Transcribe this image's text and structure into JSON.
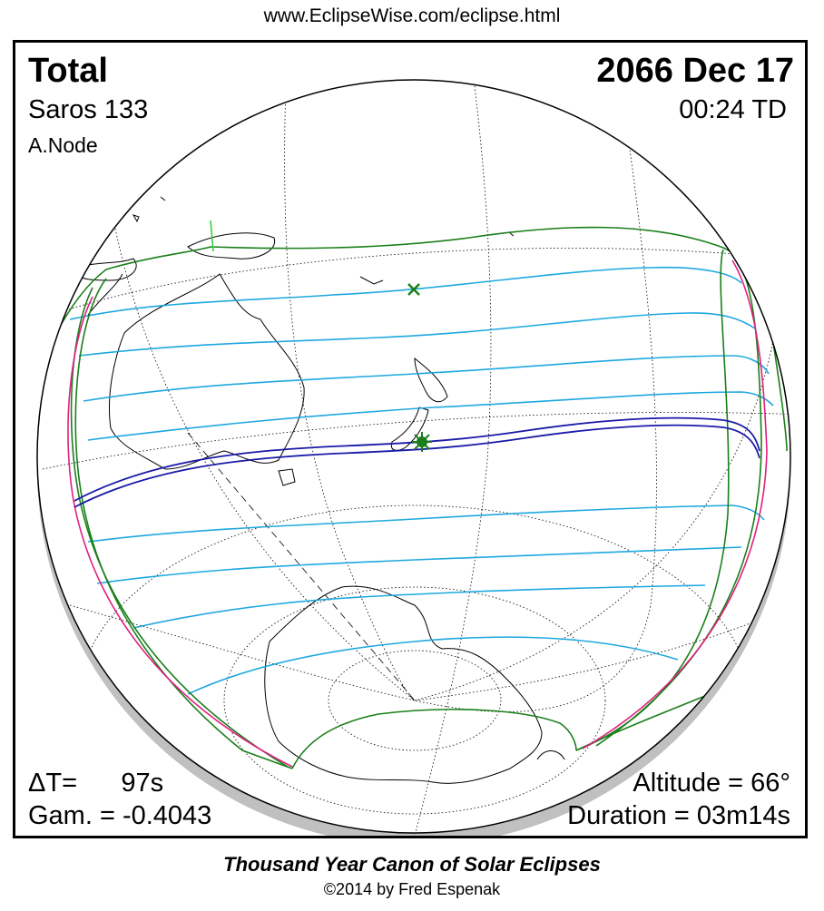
{
  "header": {
    "url": "www.EclipseWise.com/eclipse.html"
  },
  "eclipse": {
    "type": "Total",
    "date": "2066 Dec 17",
    "saros": "Saros 133",
    "time": "00:24 TD",
    "node": "A.Node",
    "delta_t": "ΔT=      97s",
    "gamma": "Gam. = -0.4043",
    "altitude": "Altitude = 66°",
    "duration": "Duration = 03m14s"
  },
  "footer": {
    "title": "Thousand Year Canon of Solar Eclipses",
    "copyright": "©2014 by Fred Espenak"
  },
  "map": {
    "colors": {
      "globe_outline": "#000000",
      "shadow": "#c0c0c0",
      "graticule": "#000000",
      "land": "#000000",
      "penumbral_limit": "#1a7f1a",
      "rise_set_curve": "#e0207f",
      "eclipse_lines": "#1ea8e0",
      "central_path": "#1a1aa8",
      "greatest_eclipse": "#1a7f1a",
      "sub_solar": "#1a7f1a"
    },
    "markers": [
      "greatest-eclipse-marker",
      "sub-solar-point-marker"
    ]
  }
}
